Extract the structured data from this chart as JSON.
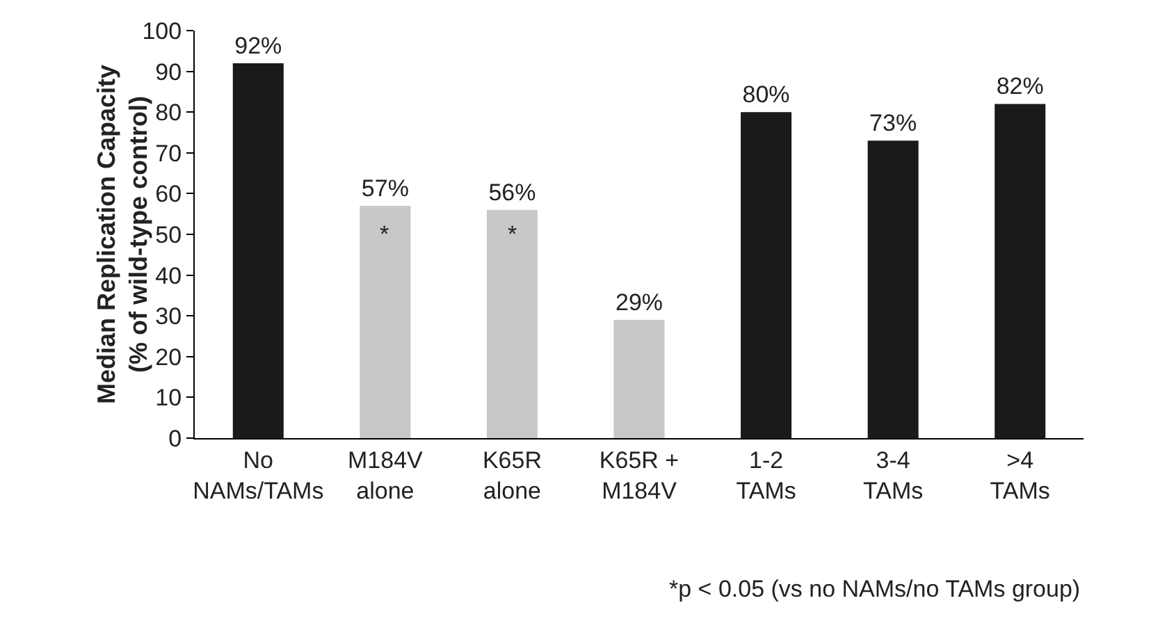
{
  "chart_data": {
    "type": "bar",
    "categories": [
      "No\nNAMs/TAMs",
      "M184V\nalone",
      "K65R\nalone",
      "K65R +\nM184V",
      "1-2\nTAMs",
      "3-4\nTAMs",
      ">4\nTAMs"
    ],
    "values": [
      92,
      57,
      56,
      29,
      80,
      73,
      82
    ],
    "colors": [
      "#1a1a1a",
      "#c8c8c8",
      "#c8c8c8",
      "#c8c8c8",
      "#1a1a1a",
      "#1a1a1a",
      "#1a1a1a"
    ],
    "value_labels": [
      "92%",
      "57%",
      "56%",
      "29%",
      "80%",
      "73%",
      "82%"
    ],
    "ylabel": "Median Replication Capacity\n(% of wild-type control)",
    "ylim": [
      0,
      100
    ],
    "yticks": [
      0,
      10,
      20,
      30,
      40,
      50,
      60,
      70,
      80,
      90,
      100
    ],
    "grid": false,
    "annotations": [
      "*",
      "*",
      "*p < 0.05 (vs no NAMs/no TAMs group)"
    ]
  }
}
